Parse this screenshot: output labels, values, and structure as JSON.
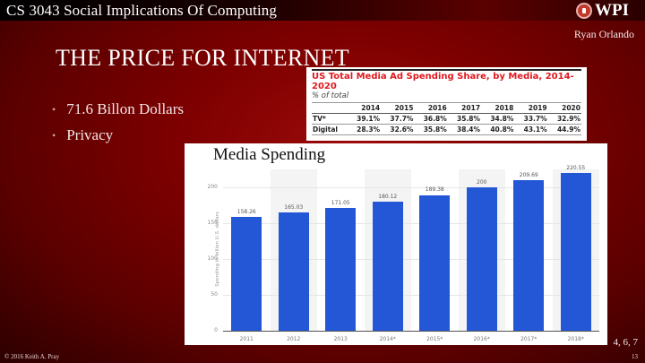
{
  "header": {
    "course_title": "CS 3043 Social Implications Of Computing",
    "logo_text": "WPI",
    "author": "Ryan Orlando"
  },
  "slide": {
    "title": "THE PRICE FOR INTERNET",
    "bullets": [
      "71.6 Billon Dollars",
      "Privacy"
    ],
    "references": "4, 6, 7"
  },
  "footer": {
    "copyright": "© 2016 Keith A. Pray",
    "page_number": "13"
  },
  "colors": {
    "background": "#7e0000",
    "bar": "#2457d6",
    "table_title": "#e0191f"
  },
  "chart_data": [
    {
      "type": "table",
      "title": "US Total Media Ad Spending Share, by Media, 2014-2020",
      "subtitle": "% of total",
      "columns": [
        "",
        "2014",
        "2015",
        "2016",
        "2017",
        "2018",
        "2019",
        "2020"
      ],
      "rows": [
        {
          "label": "TV*",
          "values": [
            "39.1%",
            "37.7%",
            "36.8%",
            "35.8%",
            "34.8%",
            "33.7%",
            "32.9%"
          ]
        },
        {
          "label": "Digital",
          "values": [
            "28.3%",
            "32.6%",
            "35.8%",
            "38.4%",
            "40.8%",
            "43.1%",
            "44.9%"
          ]
        }
      ]
    },
    {
      "type": "bar",
      "title": "Media Spending",
      "categories": [
        "2011",
        "2012",
        "2013",
        "2014*",
        "2015*",
        "2016*",
        "2017*",
        "2018*"
      ],
      "values": [
        158.26,
        165.03,
        171.05,
        180.12,
        189.38,
        200,
        209.69,
        220.55
      ],
      "value_labels": [
        "158.26",
        "165.03",
        "171.05",
        "180.12",
        "189.38",
        "200",
        "209.69",
        "220.55"
      ],
      "xlabel": "",
      "ylabel": "Spending in billion U.S. dollars",
      "ylim": [
        0,
        220.55
      ],
      "yticks": [
        "0",
        "50",
        "100",
        "150",
        "200"
      ],
      "grid": true
    }
  ]
}
